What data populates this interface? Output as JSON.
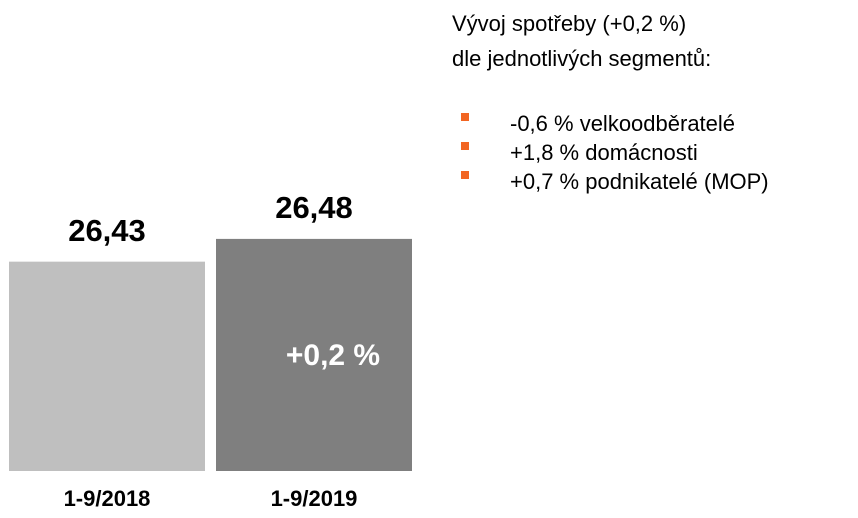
{
  "chart_data": {
    "type": "bar",
    "categories": [
      "1-9/2018",
      "1-9/2019"
    ],
    "values": [
      26.43,
      26.48
    ],
    "value_labels": [
      "26,43",
      "26,48"
    ],
    "colors": [
      "#bfbfbf",
      "#7f7f7f"
    ],
    "ylim": [
      25.97,
      26.5
    ],
    "annotation": "+0,2 %",
    "note_title": [
      "Vývoj spotřeby (+0,2 %)",
      "dle jednotlivých segmentů:"
    ],
    "note_items": [
      "-0,6 % velkoodběratelé",
      "+1,8 % domácnosti",
      "+0,7 % podnikatelé (MOP)"
    ],
    "bullet_color": "#f26522"
  }
}
